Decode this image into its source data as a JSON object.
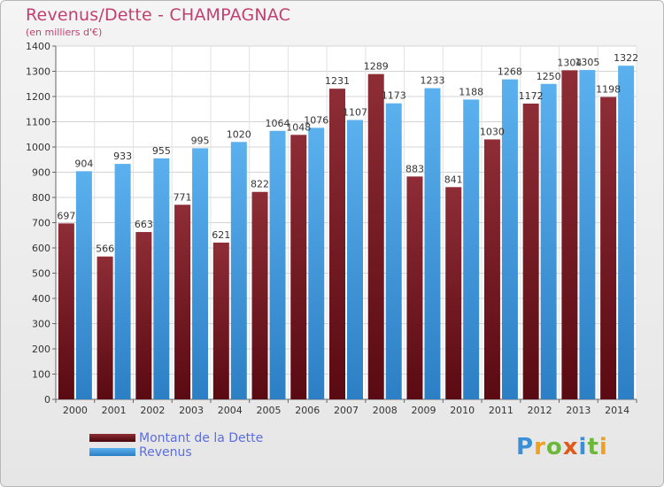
{
  "header": {
    "title": "Revenus/Dette - CHAMPAGNAC",
    "subtitle": "(en milliers d'€)"
  },
  "chart_data": {
    "type": "bar",
    "title": "Revenus/Dette - CHAMPAGNAC",
    "subtitle": "(en milliers d'€)",
    "xlabel": "",
    "ylabel": "",
    "ylim": [
      0,
      1400
    ],
    "yticks": [
      0,
      100,
      200,
      300,
      400,
      500,
      600,
      700,
      800,
      900,
      1000,
      1100,
      1200,
      1300,
      1400
    ],
    "grid": true,
    "legend_position": "bottom-left",
    "categories": [
      "2000",
      "2001",
      "2002",
      "2003",
      "2004",
      "2005",
      "2006",
      "2007",
      "2008",
      "2009",
      "2010",
      "2011",
      "2012",
      "2013",
      "2014"
    ],
    "series": [
      {
        "name": "Montant de la Dette",
        "color": "#7a1f28",
        "values": [
          697,
          566,
          663,
          771,
          621,
          822,
          1048,
          1231,
          1289,
          883,
          841,
          1030,
          1172,
          1304,
          1198
        ],
        "labels": [
          "697",
          "566",
          "663",
          "771",
          "621",
          "822",
          "1048",
          "1231",
          "1289",
          "883",
          "841",
          "1030",
          "1172",
          "1304",
          "1198"
        ]
      },
      {
        "name": "Revenus",
        "color": "#4aa3e8",
        "values": [
          904,
          933,
          955,
          995,
          1020,
          1064,
          1076,
          1107,
          1173,
          1233,
          1188,
          1268,
          1250,
          1305,
          1322
        ],
        "labels": [
          "904",
          "933",
          "955",
          "995",
          "1020",
          "1064",
          "1076",
          "1107",
          "1173",
          "1233",
          "1188",
          "1268",
          "1250",
          "1305",
          "1322"
        ]
      }
    ]
  },
  "legend": {
    "items": [
      {
        "label": "Montant de la Dette",
        "color": "#5c0f18"
      },
      {
        "label": "Revenus",
        "color": "#4aa3e8"
      }
    ]
  },
  "logo": {
    "letters": [
      {
        "ch": "P",
        "color": "#3a8fd6"
      },
      {
        "ch": "r",
        "color": "#f0a020"
      },
      {
        "ch": "o",
        "color": "#6cb83a"
      },
      {
        "ch": "x",
        "color": "#e05a1a"
      },
      {
        "ch": "i",
        "color": "#3a8fd6"
      },
      {
        "ch": "t",
        "color": "#6cb83a"
      },
      {
        "ch": "i",
        "color": "#f0a020"
      }
    ]
  }
}
